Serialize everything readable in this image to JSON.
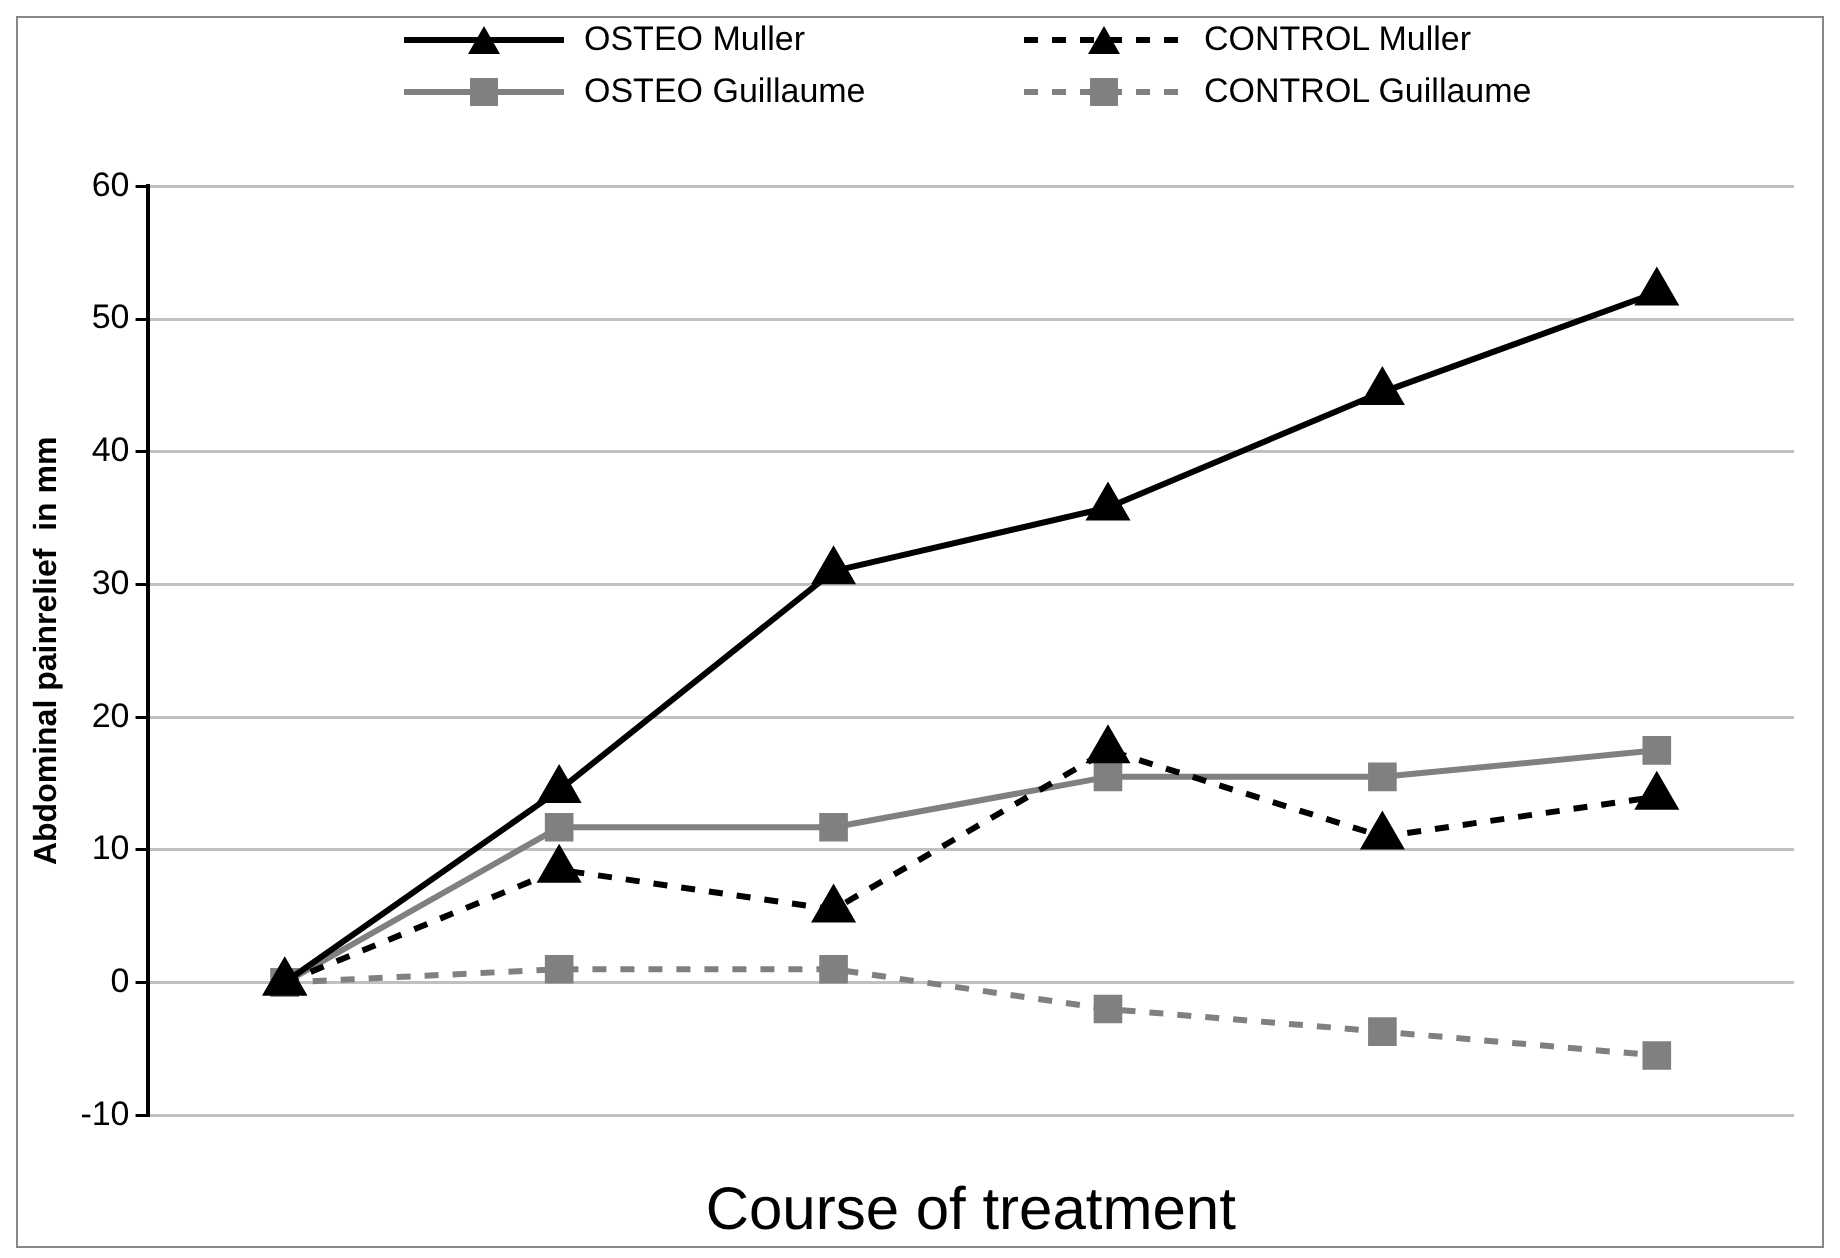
{
  "chart_data": {
    "type": "line",
    "xlabel": "Course of treatment",
    "ylabel": "Abdominal painrelief  in mm",
    "categories": [
      null,
      null,
      null,
      null,
      null,
      null
    ],
    "series": [
      {
        "name": "OSTEO Muller",
        "color": "#000000",
        "marker": "triangle",
        "line_style": "solid",
        "values": [
          0,
          14.5,
          31,
          35.8,
          44.5,
          52
        ]
      },
      {
        "name": "CONTROL Muller",
        "color": "#000000",
        "marker": "triangle",
        "line_style": "dashed",
        "values": [
          0,
          8.5,
          5.5,
          17.5,
          11,
          14
        ]
      },
      {
        "name": "OSTEO Guillaume",
        "color": "#808080",
        "marker": "square",
        "line_style": "solid",
        "values": [
          0,
          11.7,
          11.7,
          15.5,
          15.5,
          17.5
        ]
      },
      {
        "name": "CONTROL Guillaume",
        "color": "#808080",
        "marker": "square",
        "line_style": "dashed",
        "values": [
          0,
          1,
          1,
          -2,
          -3.7,
          -5.5
        ]
      }
    ],
    "ylim": [
      -10,
      60
    ],
    "yticks": [
      -10,
      0,
      10,
      20,
      30,
      40,
      50,
      60
    ],
    "grid": "y",
    "legend": "top"
  }
}
